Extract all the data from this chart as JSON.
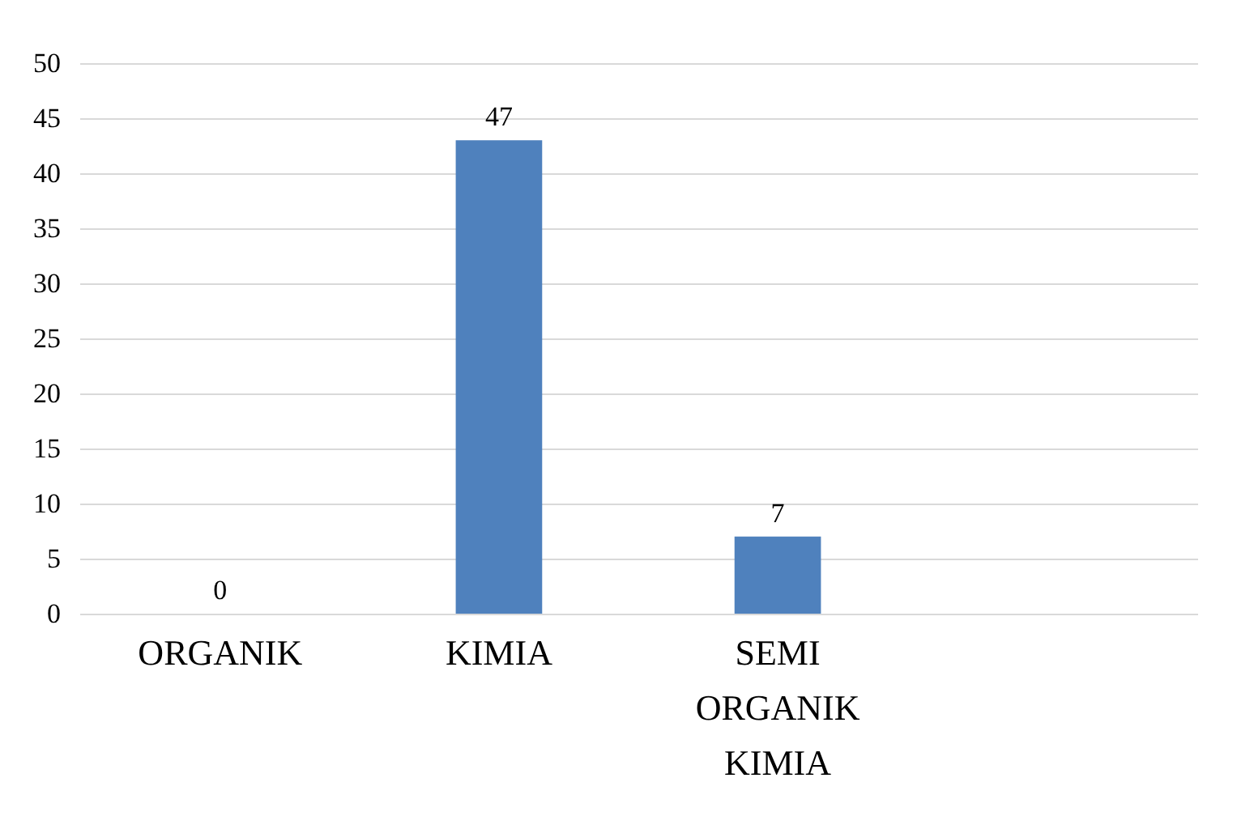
{
  "chart_data": {
    "type": "bar",
    "categories": [
      "ORGANIK",
      "KIMIA",
      "SEMI ORGANIK KIMIA",
      null
    ],
    "series": [
      {
        "color": "#4f81bd",
        "values": [
          0,
          43,
          7,
          null
        ]
      }
    ],
    "value_labels": [
      "0",
      "47",
      "7",
      null
    ],
    "ylim": [
      0,
      50
    ],
    "yticks": [
      0,
      5,
      10,
      15,
      20,
      25,
      30,
      35,
      40,
      45,
      50
    ],
    "grid": "y"
  }
}
